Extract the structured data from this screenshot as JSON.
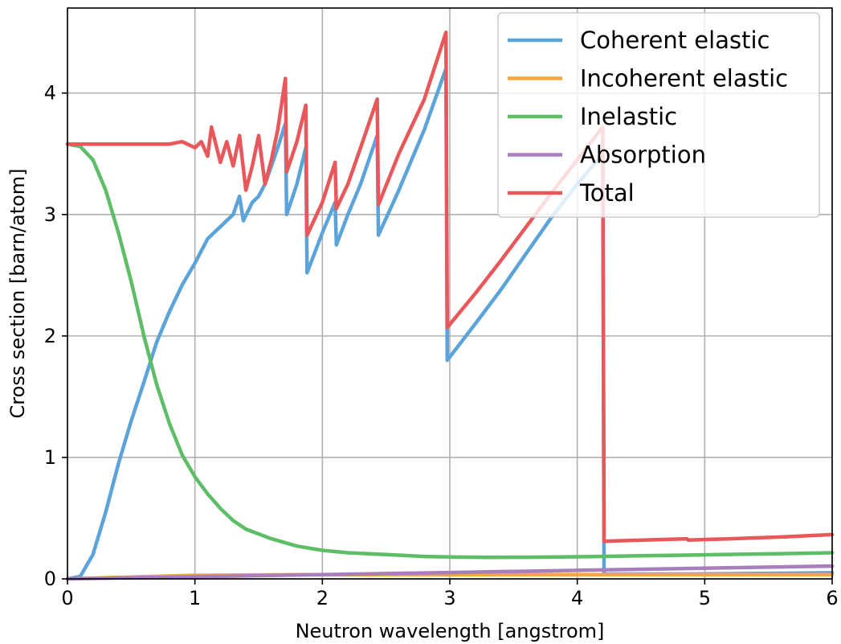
{
  "chart_data": {
    "type": "line",
    "title": "",
    "xlabel": "Neutron wavelength [angstrom]",
    "ylabel": "Cross section [barn/atom]",
    "xlim": [
      0,
      6
    ],
    "ylim": [
      0,
      4.7
    ],
    "xticks": [
      "0",
      "1",
      "2",
      "3",
      "4",
      "5",
      "6"
    ],
    "yticks": [
      "0",
      "1",
      "2",
      "3",
      "4"
    ],
    "grid": true,
    "legend_position": "top-right",
    "series": [
      {
        "name": "Coherent elastic",
        "color": "#5ba3d9",
        "points": [
          [
            0,
            0
          ],
          [
            0.1,
            0.02
          ],
          [
            0.2,
            0.2
          ],
          [
            0.3,
            0.55
          ],
          [
            0.4,
            0.95
          ],
          [
            0.5,
            1.3
          ],
          [
            0.6,
            1.62
          ],
          [
            0.7,
            1.95
          ],
          [
            0.8,
            2.2
          ],
          [
            0.9,
            2.42
          ],
          [
            1.0,
            2.6
          ],
          [
            1.1,
            2.8
          ],
          [
            1.2,
            2.9
          ],
          [
            1.3,
            3.0
          ],
          [
            1.35,
            3.15
          ],
          [
            1.38,
            2.95
          ],
          [
            1.45,
            3.1
          ],
          [
            1.5,
            3.15
          ],
          [
            1.55,
            3.25
          ],
          [
            1.6,
            3.4
          ],
          [
            1.65,
            3.55
          ],
          [
            1.71,
            3.75
          ],
          [
            1.72,
            3.0
          ],
          [
            1.8,
            3.25
          ],
          [
            1.87,
            3.55
          ],
          [
            1.88,
            2.52
          ],
          [
            2.0,
            2.85
          ],
          [
            2.1,
            3.1
          ],
          [
            2.11,
            2.75
          ],
          [
            2.2,
            3.0
          ],
          [
            2.3,
            3.25
          ],
          [
            2.43,
            3.65
          ],
          [
            2.44,
            2.83
          ],
          [
            2.6,
            3.2
          ],
          [
            2.8,
            3.7
          ],
          [
            2.97,
            4.2
          ],
          [
            2.98,
            1.8
          ],
          [
            3.2,
            2.1
          ],
          [
            3.4,
            2.38
          ],
          [
            3.6,
            2.68
          ],
          [
            3.8,
            2.98
          ],
          [
            4.0,
            3.25
          ],
          [
            4.2,
            3.5
          ],
          [
            4.21,
            0.04
          ],
          [
            4.86,
            0.04
          ],
          [
            4.87,
            0.04
          ],
          [
            6.0,
            0.05
          ]
        ]
      },
      {
        "name": "Incoherent elastic",
        "color": "#f5a742",
        "points": [
          [
            0,
            0
          ],
          [
            0.5,
            0.015
          ],
          [
            1.0,
            0.03
          ],
          [
            2.0,
            0.035
          ],
          [
            3.0,
            0.035
          ],
          [
            4.0,
            0.035
          ],
          [
            5.0,
            0.035
          ],
          [
            6.0,
            0.035
          ]
        ]
      },
      {
        "name": "Inelastic",
        "color": "#5ebd67",
        "points": [
          [
            0,
            3.58
          ],
          [
            0.1,
            3.56
          ],
          [
            0.2,
            3.45
          ],
          [
            0.3,
            3.2
          ],
          [
            0.4,
            2.85
          ],
          [
            0.5,
            2.45
          ],
          [
            0.6,
            2.0
          ],
          [
            0.7,
            1.6
          ],
          [
            0.8,
            1.28
          ],
          [
            0.9,
            1.02
          ],
          [
            1.0,
            0.84
          ],
          [
            1.1,
            0.7
          ],
          [
            1.2,
            0.58
          ],
          [
            1.3,
            0.48
          ],
          [
            1.4,
            0.41
          ],
          [
            1.6,
            0.33
          ],
          [
            1.8,
            0.27
          ],
          [
            2.0,
            0.235
          ],
          [
            2.2,
            0.215
          ],
          [
            2.5,
            0.2
          ],
          [
            2.8,
            0.185
          ],
          [
            3.0,
            0.18
          ],
          [
            3.3,
            0.177
          ],
          [
            3.6,
            0.178
          ],
          [
            4.0,
            0.182
          ],
          [
            4.5,
            0.19
          ],
          [
            5.0,
            0.198
          ],
          [
            5.5,
            0.206
          ],
          [
            6.0,
            0.215
          ]
        ]
      },
      {
        "name": "Absorption",
        "color": "#a77fbd",
        "points": [
          [
            0,
            0
          ],
          [
            1.0,
            0.018
          ],
          [
            2.0,
            0.035
          ],
          [
            3.0,
            0.052
          ],
          [
            4.0,
            0.07
          ],
          [
            5.0,
            0.088
          ],
          [
            6.0,
            0.105
          ]
        ]
      },
      {
        "name": "Total",
        "color": "#e8585a",
        "points": [
          [
            0,
            3.58
          ],
          [
            0.5,
            3.58
          ],
          [
            0.8,
            3.58
          ],
          [
            0.9,
            3.6
          ],
          [
            1.0,
            3.55
          ],
          [
            1.05,
            3.6
          ],
          [
            1.1,
            3.48
          ],
          [
            1.13,
            3.72
          ],
          [
            1.2,
            3.43
          ],
          [
            1.25,
            3.6
          ],
          [
            1.3,
            3.4
          ],
          [
            1.35,
            3.65
          ],
          [
            1.4,
            3.2
          ],
          [
            1.45,
            3.4
          ],
          [
            1.5,
            3.65
          ],
          [
            1.55,
            3.25
          ],
          [
            1.6,
            3.45
          ],
          [
            1.65,
            3.7
          ],
          [
            1.71,
            4.12
          ],
          [
            1.72,
            3.35
          ],
          [
            1.8,
            3.6
          ],
          [
            1.87,
            3.9
          ],
          [
            1.88,
            2.83
          ],
          [
            2.0,
            3.1
          ],
          [
            2.1,
            3.43
          ],
          [
            2.11,
            3.05
          ],
          [
            2.2,
            3.25
          ],
          [
            2.3,
            3.55
          ],
          [
            2.43,
            3.95
          ],
          [
            2.44,
            3.08
          ],
          [
            2.6,
            3.5
          ],
          [
            2.8,
            3.95
          ],
          [
            2.97,
            4.5
          ],
          [
            2.98,
            2.07
          ],
          [
            3.2,
            2.35
          ],
          [
            3.4,
            2.62
          ],
          [
            3.6,
            2.9
          ],
          [
            3.8,
            3.18
          ],
          [
            4.0,
            3.45
          ],
          [
            4.2,
            3.72
          ],
          [
            4.21,
            0.31
          ],
          [
            4.86,
            0.33
          ],
          [
            4.87,
            0.32
          ],
          [
            5.2,
            0.33
          ],
          [
            5.6,
            0.345
          ],
          [
            6.0,
            0.365
          ]
        ]
      }
    ]
  }
}
